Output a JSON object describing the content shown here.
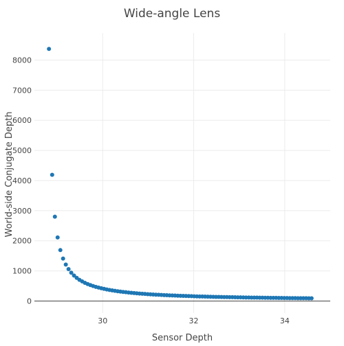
{
  "chart_data": {
    "type": "scatter",
    "title": "Wide-angle Lens",
    "xlabel": "Sensor Depth",
    "ylabel": "World-side Conjugate Depth",
    "xlim": [
      28.5,
      35.0
    ],
    "ylim": [
      -400,
      8900
    ],
    "x_ticks": [
      30,
      32,
      34
    ],
    "x_tick_labels": [
      "30",
      "32",
      "34"
    ],
    "y_ticks": [
      0,
      1000,
      2000,
      3000,
      4000,
      5000,
      6000,
      7000,
      8000
    ],
    "y_tick_labels": [
      "0",
      "1000",
      "2000",
      "3000",
      "4000",
      "5000",
      "6000",
      "7000",
      "8000"
    ],
    "grid": true,
    "marker_color": "#1f77b4",
    "series": [
      {
        "points": [
          [
            28.82,
            8370
          ],
          [
            28.89,
            4190
          ],
          [
            28.95,
            2800
          ],
          [
            29.01,
            2110
          ],
          [
            29.07,
            1690
          ],
          [
            29.13,
            1410
          ],
          [
            29.19,
            1210
          ],
          [
            29.25,
            1060
          ],
          [
            29.31,
            939
          ],
          [
            29.37,
            845
          ],
          [
            29.43,
            768
          ],
          [
            29.49,
            704
          ],
          [
            29.55,
            650
          ],
          [
            29.61,
            603
          ],
          [
            29.67,
            563
          ],
          [
            29.73,
            528
          ],
          [
            29.79,
            497
          ],
          [
            29.85,
            470
          ],
          [
            29.91,
            445
          ],
          [
            29.97,
            423
          ],
          [
            30.03,
            403
          ],
          [
            30.09,
            384
          ],
          [
            30.15,
            367
          ],
          [
            30.21,
            352
          ],
          [
            30.27,
            338
          ],
          [
            30.33,
            325
          ],
          [
            30.39,
            313
          ],
          [
            30.45,
            301
          ],
          [
            30.51,
            291
          ],
          [
            30.57,
            281
          ],
          [
            30.63,
            272
          ],
          [
            30.69,
            263
          ],
          [
            30.75,
            255
          ],
          [
            30.81,
            248
          ],
          [
            30.87,
            241
          ],
          [
            30.93,
            234
          ],
          [
            30.99,
            228
          ],
          [
            31.05,
            222
          ],
          [
            31.11,
            216
          ],
          [
            31.17,
            211
          ],
          [
            31.23,
            206
          ],
          [
            31.29,
            201
          ],
          [
            31.35,
            196
          ],
          [
            31.41,
            192
          ],
          [
            31.47,
            188
          ],
          [
            31.53,
            184
          ],
          [
            31.59,
            180
          ],
          [
            31.65,
            176
          ],
          [
            31.71,
            172
          ],
          [
            31.77,
            169
          ],
          [
            31.83,
            166
          ],
          [
            31.89,
            163
          ],
          [
            31.95,
            160
          ],
          [
            32.01,
            157
          ],
          [
            32.07,
            154
          ],
          [
            32.13,
            151
          ],
          [
            32.19,
            149
          ],
          [
            32.25,
            146
          ],
          [
            32.31,
            144
          ],
          [
            32.37,
            142
          ],
          [
            32.43,
            139
          ],
          [
            32.49,
            137
          ],
          [
            32.55,
            135
          ],
          [
            32.61,
            133
          ],
          [
            32.67,
            131
          ],
          [
            32.73,
            129
          ],
          [
            32.79,
            127
          ],
          [
            32.85,
            126
          ],
          [
            32.91,
            124
          ],
          [
            32.97,
            122
          ],
          [
            33.03,
            120
          ],
          [
            33.09,
            119
          ],
          [
            33.15,
            117
          ],
          [
            33.21,
            116
          ],
          [
            33.27,
            114
          ],
          [
            33.33,
            113
          ],
          [
            33.39,
            112
          ],
          [
            33.45,
            110
          ],
          [
            33.51,
            109
          ],
          [
            33.57,
            108
          ],
          [
            33.63,
            106
          ],
          [
            33.69,
            105
          ],
          [
            33.75,
            104
          ],
          [
            33.81,
            103
          ],
          [
            33.87,
            102
          ],
          [
            33.93,
            101
          ],
          [
            33.99,
            99
          ],
          [
            34.05,
            98
          ],
          [
            34.11,
            97
          ],
          [
            34.17,
            96
          ],
          [
            34.23,
            95
          ],
          [
            34.29,
            94
          ],
          [
            34.35,
            94
          ],
          [
            34.41,
            93
          ],
          [
            34.47,
            92
          ],
          [
            34.53,
            91
          ],
          [
            34.59,
            90
          ]
        ]
      }
    ]
  }
}
